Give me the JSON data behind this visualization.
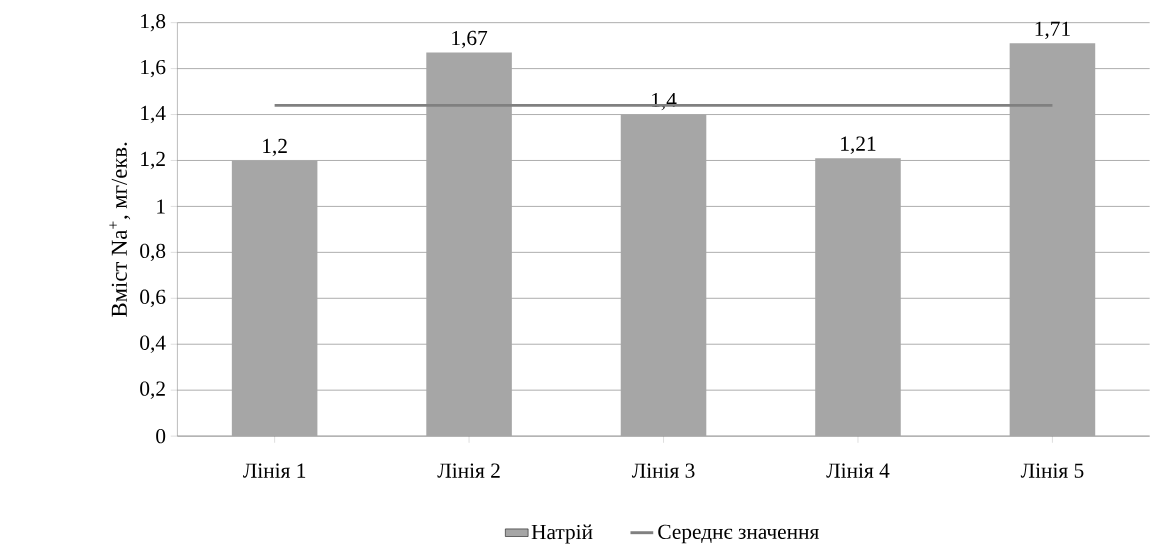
{
  "chart_data": {
    "type": "bar",
    "ylabel": "Вміст Na$^{+}$, мг/екв.",
    "categories": [
      "Лінія 1",
      "Лінія 2",
      "Лінія 3",
      "Лінія 4",
      "Лінія 5"
    ],
    "series": [
      {
        "name": "Натрій",
        "color": "#a6a6a6",
        "values": [
          1.2,
          1.67,
          1.4,
          1.21,
          1.71
        ],
        "value_labels": [
          "1,2",
          "1,67",
          "1,4",
          "1,21",
          "1,71"
        ]
      },
      {
        "name": "Середнє значення",
        "type": "line",
        "color": "#808080",
        "values": [
          1.44,
          1.44,
          1.44,
          1.44,
          1.44
        ]
      }
    ],
    "ylim": [
      0,
      1.8
    ],
    "yticks": [
      0,
      {
        "value": 0.2,
        "label": "0,2"
      },
      {
        "value": 0.4,
        "label": "0,4"
      },
      {
        "value": 0.6,
        "label": "0,6"
      },
      {
        "value": 0.8,
        "label": "0,8"
      },
      1,
      {
        "value": 1.2,
        "label": "1,2"
      },
      {
        "value": 1.4,
        "label": "1,4"
      },
      {
        "value": 1.6,
        "label": "1,6"
      },
      {
        "value": 1.8,
        "label": "1,8"
      }
    ],
    "grid": "y",
    "legend": "bottom"
  }
}
